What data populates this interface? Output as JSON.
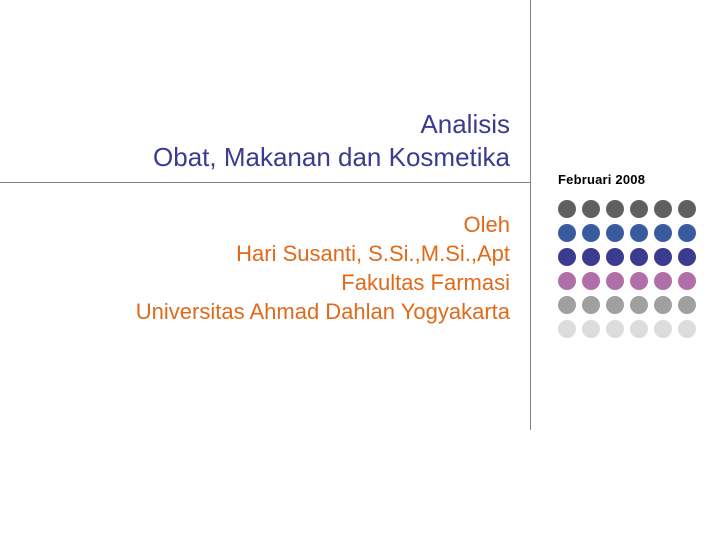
{
  "title": {
    "line1": "Analisis",
    "line2": "Obat, Makanan dan Kosmetika",
    "color": "#3b3b8f",
    "fontsize": 26
  },
  "author": {
    "line1": "Oleh",
    "line2": "Hari Susanti, S.Si.,M.Si.,Apt",
    "line3": "Fakultas Farmasi",
    "line4": "Universitas Ahmad Dahlan Yogyakarta",
    "color": "#e06a1a",
    "fontsize": 22
  },
  "date": {
    "text": "Februari 2008",
    "color": "#000000",
    "fontsize": 13
  },
  "lines": {
    "color": "#808080"
  },
  "dot_grid": {
    "rows": 6,
    "cols": 6,
    "dot_size": 18,
    "gap": 6,
    "row_colors": [
      "#606060",
      "#385a9e",
      "#3b3b8f",
      "#b06fa8",
      "#a0a0a0",
      "#dcdcdc"
    ]
  },
  "background_color": "#ffffff"
}
